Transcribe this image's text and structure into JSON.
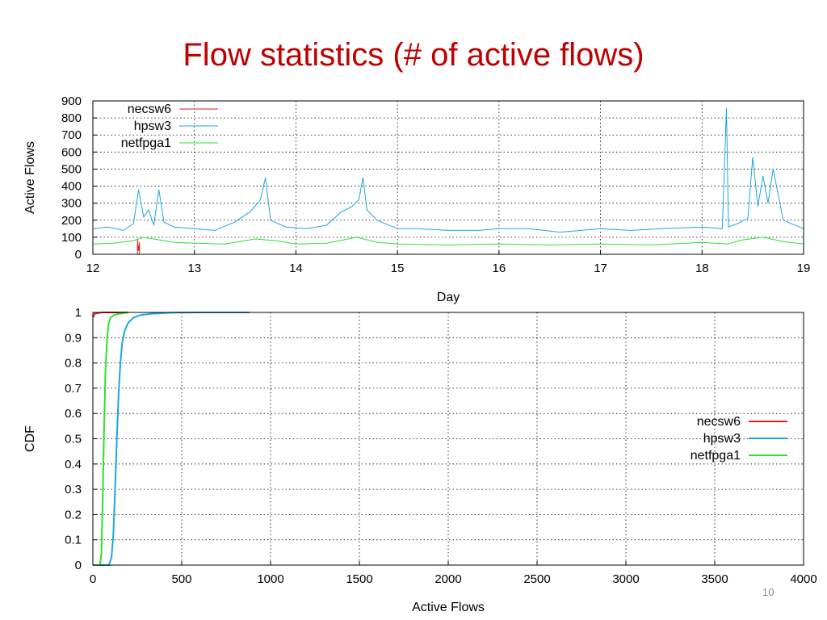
{
  "slide": {
    "title": "Flow statistics (# of active flows)",
    "page_number": "10"
  },
  "chart_data": [
    {
      "type": "line",
      "xlabel": "Day",
      "ylabel": "Active Flows",
      "xlim": [
        12,
        19
      ],
      "ylim": [
        0,
        900
      ],
      "x_ticks": [
        12,
        13,
        14,
        15,
        16,
        17,
        18,
        19
      ],
      "y_ticks": [
        0,
        100,
        200,
        300,
        400,
        500,
        600,
        700,
        800,
        900
      ],
      "grid": true,
      "legend_position": "top-left",
      "colors": {
        "necsw6": "#e0201a",
        "hpsw3": "#1aa7e0",
        "netfpga1": "#2ee02e"
      },
      "series": [
        {
          "name": "necsw6",
          "x": [
            12.44,
            12.44,
            12.45,
            12.46,
            12.46
          ],
          "y": [
            0,
            90,
            20,
            70,
            0
          ]
        },
        {
          "name": "hpsw3",
          "x": [
            12.0,
            12.15,
            12.3,
            12.4,
            12.45,
            12.5,
            12.55,
            12.6,
            12.65,
            12.7,
            12.8,
            13.0,
            13.2,
            13.4,
            13.55,
            13.65,
            13.7,
            13.75,
            13.9,
            14.1,
            14.3,
            14.45,
            14.55,
            14.62,
            14.66,
            14.7,
            14.8,
            15.0,
            15.2,
            15.5,
            15.8,
            16.0,
            16.3,
            16.6,
            17.0,
            17.3,
            17.6,
            18.0,
            18.2,
            18.24,
            18.26,
            18.35,
            18.45,
            18.5,
            18.55,
            18.6,
            18.65,
            18.7,
            18.8,
            19.0
          ],
          "y": [
            150,
            160,
            140,
            180,
            380,
            220,
            260,
            170,
            380,
            190,
            160,
            150,
            140,
            190,
            250,
            320,
            450,
            200,
            160,
            150,
            170,
            250,
            280,
            320,
            450,
            260,
            200,
            150,
            150,
            140,
            140,
            150,
            150,
            130,
            150,
            140,
            150,
            160,
            150,
            860,
            160,
            180,
            210,
            570,
            280,
            460,
            300,
            500,
            200,
            150
          ]
        },
        {
          "name": "netfpga1",
          "x": [
            12.0,
            12.2,
            12.4,
            12.5,
            12.6,
            12.8,
            13.0,
            13.3,
            13.6,
            13.8,
            14.0,
            14.3,
            14.6,
            14.8,
            15.0,
            15.5,
            16.0,
            16.5,
            17.0,
            17.5,
            18.0,
            18.25,
            18.4,
            18.6,
            18.8,
            19.0
          ],
          "y": [
            60,
            65,
            80,
            100,
            90,
            70,
            65,
            60,
            90,
            80,
            60,
            65,
            100,
            70,
            60,
            55,
            60,
            55,
            60,
            55,
            70,
            60,
            85,
            100,
            75,
            60
          ]
        }
      ]
    },
    {
      "type": "line",
      "xlabel": "Active Flows",
      "ylabel": "CDF",
      "xlim": [
        0,
        4000
      ],
      "ylim": [
        0,
        1
      ],
      "x_ticks": [
        0,
        500,
        1000,
        1500,
        2000,
        2500,
        3000,
        3500,
        4000
      ],
      "y_ticks": [
        0,
        0.1,
        0.2,
        0.3,
        0.4,
        0.5,
        0.6,
        0.7,
        0.8,
        0.9,
        1
      ],
      "grid": true,
      "legend_position": "center-right",
      "colors": {
        "necsw6": "#e0201a",
        "hpsw3": "#1aa7e0",
        "netfpga1": "#2ee02e"
      },
      "series": [
        {
          "name": "necsw6",
          "x": [
            0,
            10,
            50,
            100,
            150,
            200
          ],
          "y": [
            0.98,
            0.995,
            1,
            1,
            1,
            1
          ]
        },
        {
          "name": "hpsw3",
          "x": [
            0,
            90,
            105,
            115,
            125,
            135,
            145,
            155,
            165,
            180,
            200,
            230,
            270,
            330,
            450,
            600,
            880
          ],
          "y": [
            0,
            0.0,
            0.03,
            0.12,
            0.3,
            0.5,
            0.68,
            0.8,
            0.88,
            0.93,
            0.96,
            0.98,
            0.99,
            0.995,
            0.999,
            1,
            1
          ]
        },
        {
          "name": "netfpga1",
          "x": [
            0,
            40,
            48,
            55,
            62,
            70,
            80,
            90,
            100,
            120,
            150,
            200
          ],
          "y": [
            0,
            0,
            0.05,
            0.25,
            0.5,
            0.75,
            0.9,
            0.96,
            0.98,
            0.99,
            0.995,
            1
          ]
        }
      ]
    }
  ]
}
